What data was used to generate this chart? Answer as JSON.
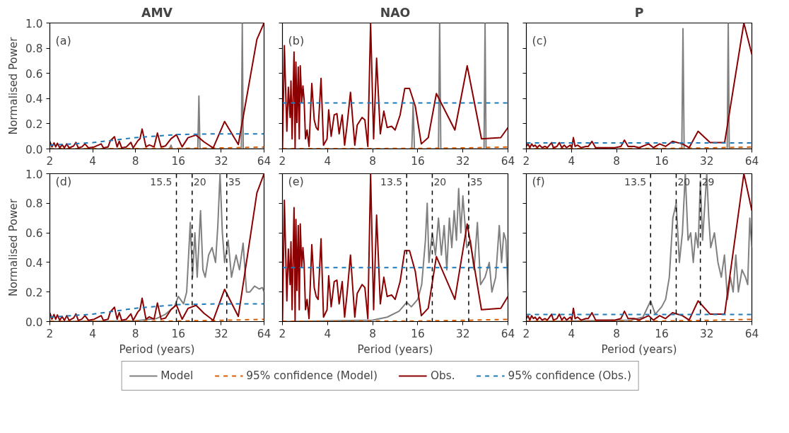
{
  "chart_data": [
    {
      "type": "line",
      "title": "AMV",
      "ylabel": "Normalised Power",
      "annotations": [
        "(a)"
      ],
      "xlim": [
        2,
        64
      ],
      "xticks": [
        2,
        4,
        8,
        16,
        32,
        64
      ],
      "ylim": [
        0,
        1
      ],
      "yticks": [
        {
          "value": 0,
          "label": "0.0"
        },
        {
          "value": 0.2,
          "label": "0.2"
        },
        {
          "value": 0.4,
          "label": "0.4"
        },
        {
          "value": 0.6,
          "label": "0.6"
        },
        {
          "value": 0.8,
          "label": "0.8"
        },
        {
          "value": 1,
          "label": "1.0"
        }
      ],
      "log": "x",
      "series": [
        {
          "color": "#808080",
          "line_style": "solid",
          "x": [
            2,
            13.9,
            14.2,
            14.5,
            21.9,
            22.3,
            22.7,
            44.3,
            45,
            45.7,
            64
          ],
          "values": [
            0,
            0,
            0.03,
            0,
            0,
            0.42,
            0,
            0,
            1.0,
            0,
            0
          ]
        },
        {
          "color": "#d95f02",
          "line_style": "dashed",
          "x": [
            2,
            16,
            32,
            64
          ],
          "values": [
            0.002,
            0.004,
            0.008,
            0.015
          ]
        },
        {
          "color": "#8b0000",
          "line_style": "solid",
          "x": [
            2,
            2.07,
            2.14,
            2.2,
            2.26,
            2.35,
            2.44,
            2.53,
            2.63,
            2.73,
            2.94,
            3.05,
            3.17,
            3.35,
            3.53,
            3.74,
            4.1,
            4.59,
            4.76,
            5.13,
            5.32,
            5.69,
            5.94,
            6.15,
            6.4,
            6.9,
            7.42,
            7.7,
            8.3,
            8.6,
            8.9,
            9.47,
            10,
            10.8,
            11.4,
            12.1,
            13,
            14.2,
            15.5,
            17,
            18.7,
            21.3,
            24.2,
            28.1,
            33.8,
            42.2,
            57,
            64
          ],
          "values": [
            0.06,
            0.016,
            0.048,
            0.016,
            0.045,
            0.008,
            0.035,
            0.008,
            0.04,
            0.008,
            0.024,
            0.052,
            0.008,
            0.016,
            0.04,
            0.008,
            0.016,
            0.04,
            0.008,
            0.016,
            0.065,
            0.097,
            0.016,
            0.061,
            0.008,
            0.016,
            0.052,
            0.008,
            0.065,
            0.081,
            0.158,
            0.016,
            0.032,
            0.016,
            0.126,
            0.016,
            0.024,
            0.081,
            0.113,
            0.016,
            0.089,
            0.11,
            0.056,
            0.008,
            0.218,
            0.035,
            0.87,
            1.0
          ]
        },
        {
          "color": "#1f7ab8",
          "line_style": "dashed",
          "x": [
            2,
            4,
            8,
            16,
            32,
            64
          ],
          "values": [
            0.03,
            0.05,
            0.09,
            0.115,
            0.12,
            0.12
          ]
        }
      ]
    },
    {
      "type": "line",
      "title": "NAO",
      "annotations": [
        "(b)"
      ],
      "xlim": [
        2,
        64
      ],
      "xticks": [
        2,
        4,
        8,
        16,
        32,
        64
      ],
      "ylim": [
        0,
        1
      ],
      "yticks": [
        0,
        0.2,
        0.4,
        0.6,
        0.8,
        1
      ],
      "tick_labels": "x",
      "log": "x",
      "series": [
        {
          "color": "#808080",
          "line_style": "solid",
          "x": [
            2,
            14.6,
            14.9,
            15.2,
            22,
            22.4,
            22.8,
            44.3,
            45,
            45.7,
            64
          ],
          "values": [
            0,
            0,
            0.36,
            0,
            0,
            1.0,
            0,
            0,
            1.0,
            0,
            0
          ]
        },
        {
          "color": "#d95f02",
          "line_style": "dashed",
          "x": [
            2,
            16,
            32,
            64
          ],
          "values": [
            0.002,
            0.004,
            0.008,
            0.015
          ]
        },
        {
          "color": "#8b0000",
          "line_style": "solid",
          "x": [
            2,
            2.06,
            2.14,
            2.19,
            2.25,
            2.28,
            2.32,
            2.39,
            2.43,
            2.46,
            2.5,
            2.55,
            2.59,
            2.63,
            2.69,
            2.74,
            2.79,
            2.85,
            2.92,
            3.01,
            3.14,
            3.26,
            3.36,
            3.46,
            3.62,
            3.76,
            3.97,
            4.07,
            4.23,
            4.43,
            4.62,
            4.78,
            5.01,
            5.2,
            5.4,
            5.69,
            6.08,
            6.31,
            6.8,
            7.1,
            7.43,
            7.75,
            8.12,
            8.5,
            9,
            9.5,
            10,
            10.7,
            11.3,
            12.2,
            13.1,
            14.1,
            15.4,
            16.9,
            18.8,
            21.3,
            28.3,
            34.2,
            42.6,
            57.3,
            64
          ],
          "values": [
            0,
            0.82,
            0.14,
            0.49,
            0.25,
            0.54,
            0.08,
            0.77,
            0,
            0.69,
            0.21,
            0.65,
            0.08,
            0.66,
            0.37,
            0.5,
            0.39,
            0.08,
            0.15,
            0.02,
            0.52,
            0.23,
            0.17,
            0.15,
            0.56,
            0.03,
            0.08,
            0.31,
            0.1,
            0.27,
            0.28,
            0.12,
            0.27,
            0.03,
            0.19,
            0.45,
            0.03,
            0.19,
            0.25,
            0.23,
            0.02,
            1.0,
            0.08,
            0.72,
            0.12,
            0.3,
            0.17,
            0.18,
            0.15,
            0.27,
            0.48,
            0.48,
            0.34,
            0.04,
            0.09,
            0.44,
            0.15,
            0.66,
            0.08,
            0.09,
            0.17
          ]
        },
        {
          "color": "#1f7ab8",
          "line_style": "dashed",
          "x": [
            2,
            64
          ],
          "values": [
            0.365,
            0.365
          ]
        }
      ]
    },
    {
      "type": "line",
      "title": "P",
      "annotations": [
        "(c)"
      ],
      "xlim": [
        2,
        64
      ],
      "xticks": [
        2,
        4,
        8,
        16,
        32,
        64
      ],
      "ylim": [
        0,
        1
      ],
      "yticks": [
        0,
        0.2,
        0.4,
        0.6,
        0.8,
        1
      ],
      "tick_labels": "x",
      "log": "x",
      "series": [
        {
          "color": "#808080",
          "line_style": "solid",
          "x": [
            2,
            21.8,
            22.2,
            22.6,
            43.8,
            44.5,
            45.2,
            64
          ],
          "values": [
            0,
            0,
            0.955,
            0,
            0,
            1.0,
            0,
            0
          ]
        },
        {
          "color": "#d95f02",
          "line_style": "dashed",
          "x": [
            2,
            16,
            32,
            64
          ],
          "values": [
            0.002,
            0.004,
            0.008,
            0.015
          ]
        },
        {
          "color": "#8b0000",
          "line_style": "solid",
          "x": [
            2,
            2.05,
            2.11,
            2.17,
            2.23,
            2.29,
            2.36,
            2.45,
            2.55,
            2.66,
            2.76,
            2.95,
            3.03,
            3.2,
            3.32,
            3.45,
            3.58,
            3.71,
            3.93,
            4.02,
            4.12,
            4.23,
            4.39,
            4.65,
            5.0,
            5.18,
            5.48,
            5.8,
            6.49,
            7.8,
            8.55,
            9.03,
            9.55,
            10.5,
            11.3,
            13.1,
            14.1,
            15.5,
            16.98,
            18.9,
            22,
            24.4,
            28,
            33.7,
            42.1,
            56.6,
            64
          ],
          "values": [
            0.02,
            0.04,
            0.01,
            0.04,
            0.02,
            0.03,
            0.01,
            0.03,
            0.01,
            0.02,
            0.01,
            0.05,
            0.01,
            0.02,
            0.05,
            0.01,
            0.03,
            0.01,
            0.03,
            0.01,
            0.09,
            0.02,
            0.03,
            0.01,
            0.02,
            0.02,
            0.06,
            0.01,
            0.01,
            0.01,
            0.02,
            0.07,
            0.02,
            0.02,
            0.01,
            0.04,
            0.01,
            0.04,
            0.02,
            0.06,
            0.04,
            0.01,
            0.14,
            0.05,
            0.05,
            1.0,
            0.75
          ]
        },
        {
          "color": "#1f7ab8",
          "line_style": "dashed",
          "x": [
            2,
            64
          ],
          "values": [
            0.048,
            0.048
          ]
        }
      ]
    },
    {
      "type": "line",
      "xlabel": "Period (years)",
      "ylabel": "Normalised Power",
      "annotations": [
        "(d)"
      ],
      "xlim": [
        2,
        64
      ],
      "xticks": [
        2,
        4,
        8,
        16,
        32,
        64
      ],
      "ylim": [
        0,
        1
      ],
      "yticks": [
        {
          "value": 0,
          "label": "0.0"
        },
        {
          "value": 0.2,
          "label": "0.2"
        },
        {
          "value": 0.4,
          "label": "0.4"
        },
        {
          "value": 0.6,
          "label": "0.6"
        },
        {
          "value": 0.8,
          "label": "0.8"
        },
        {
          "value": 1,
          "label": "1.0"
        }
      ],
      "log": "x",
      "ref_lines": [
        {
          "axis": "x",
          "value": 15.5,
          "label": "15.5",
          "color": "#000000",
          "line_style": "dashed"
        },
        {
          "axis": "x",
          "value": 20,
          "label": "20",
          "color": "#000000",
          "line_style": "dashed"
        },
        {
          "axis": "x",
          "value": 35,
          "label": "35",
          "color": "#000000",
          "line_style": "dashed"
        }
      ],
      "series": [
        {
          "color": "#808080",
          "line_style": "solid",
          "x": [
            2,
            8,
            11.2,
            13,
            15,
            16,
            17.4,
            18.3,
            19,
            19.4,
            20.1,
            20.9,
            21.7,
            22.9,
            23.8,
            24.7,
            26.1,
            27.6,
            29.2,
            30.3,
            31.4,
            32.6,
            33.8,
            35.8,
            37.8,
            40.7,
            43,
            45.6,
            48.2,
            50.9,
            54.9,
            59.2,
            62.3,
            64
          ],
          "values": [
            0,
            0.005,
            0.02,
            0.05,
            0.1,
            0.17,
            0.12,
            0.2,
            0.5,
            0.67,
            0.3,
            0.6,
            0.3,
            0.75,
            0.35,
            0.3,
            0.45,
            0.5,
            0.4,
            0.65,
            1.0,
            0.6,
            0.4,
            0.55,
            0.3,
            0.45,
            0.35,
            0.53,
            0.2,
            0.2,
            0.24,
            0.22,
            0.23,
            0.2
          ]
        },
        {
          "color": "#d95f02",
          "line_style": "dashed",
          "x": [
            2,
            16,
            32,
            64
          ],
          "values": [
            0.002,
            0.004,
            0.008,
            0.015
          ]
        },
        {
          "color": "#8b0000",
          "line_style": "solid",
          "x": [
            2,
            2.07,
            2.14,
            2.2,
            2.26,
            2.35,
            2.44,
            2.53,
            2.63,
            2.73,
            2.94,
            3.05,
            3.17,
            3.35,
            3.53,
            3.74,
            4.1,
            4.59,
            4.76,
            5.13,
            5.32,
            5.69,
            5.94,
            6.15,
            6.4,
            6.9,
            7.42,
            7.7,
            8.3,
            8.6,
            8.9,
            9.47,
            10,
            10.8,
            11.4,
            12.1,
            13,
            14.2,
            15.5,
            17,
            18.7,
            21.3,
            24.2,
            28.1,
            33.8,
            42.2,
            57,
            64
          ],
          "values": [
            0.06,
            0.016,
            0.048,
            0.016,
            0.045,
            0.008,
            0.035,
            0.008,
            0.04,
            0.008,
            0.024,
            0.052,
            0.008,
            0.016,
            0.04,
            0.008,
            0.016,
            0.04,
            0.008,
            0.016,
            0.065,
            0.097,
            0.016,
            0.061,
            0.008,
            0.016,
            0.052,
            0.008,
            0.065,
            0.081,
            0.158,
            0.016,
            0.032,
            0.016,
            0.126,
            0.016,
            0.024,
            0.081,
            0.113,
            0.016,
            0.089,
            0.11,
            0.056,
            0.008,
            0.218,
            0.035,
            0.87,
            1.0
          ]
        },
        {
          "color": "#1f7ab8",
          "line_style": "dashed",
          "x": [
            2,
            4,
            8,
            16,
            32,
            64
          ],
          "values": [
            0.03,
            0.05,
            0.09,
            0.115,
            0.12,
            0.12
          ]
        }
      ]
    },
    {
      "type": "line",
      "xlabel": "Period (years)",
      "annotations": [
        "(e)"
      ],
      "xlim": [
        2,
        64
      ],
      "xticks": [
        2,
        4,
        8,
        16,
        32,
        64
      ],
      "ylim": [
        0,
        1
      ],
      "yticks": [
        0,
        0.2,
        0.4,
        0.6,
        0.8,
        1
      ],
      "tick_labels": "x",
      "log": "x",
      "ref_lines": [
        {
          "axis": "x",
          "value": 13.5,
          "label": "13.5",
          "color": "#000000",
          "line_style": "dashed"
        },
        {
          "axis": "x",
          "value": 20,
          "label": "20",
          "color": "#000000",
          "line_style": "dashed"
        },
        {
          "axis": "x",
          "value": 35,
          "label": "35",
          "color": "#000000",
          "line_style": "dashed"
        }
      ],
      "series": [
        {
          "color": "#808080",
          "line_style": "solid",
          "x": [
            2,
            8,
            10,
            12,
            13.5,
            14.5,
            16,
            17,
            18,
            18.5,
            19,
            20,
            21,
            22,
            23,
            24,
            25,
            26,
            27,
            28,
            29,
            30,
            31,
            32,
            34,
            36,
            38,
            40,
            42,
            45,
            48,
            50,
            53,
            56,
            58,
            60,
            62,
            64
          ],
          "values": [
            0,
            0.01,
            0.03,
            0.07,
            0.13,
            0.1,
            0.15,
            0.25,
            0.55,
            0.8,
            0.4,
            0.6,
            0.45,
            0.7,
            0.45,
            0.65,
            0.35,
            0.7,
            0.5,
            0.75,
            0.55,
            0.9,
            0.6,
            0.85,
            0.5,
            0.55,
            0.35,
            0.67,
            0.25,
            0.3,
            0.4,
            0.2,
            0.3,
            0.65,
            0.4,
            0.6,
            0.55,
            0.2
          ]
        },
        {
          "color": "#d95f02",
          "line_style": "dashed",
          "x": [
            2,
            16,
            32,
            64
          ],
          "values": [
            0.002,
            0.004,
            0.008,
            0.015
          ]
        },
        {
          "color": "#8b0000",
          "line_style": "solid",
          "x": [
            2,
            2.06,
            2.14,
            2.19,
            2.25,
            2.28,
            2.32,
            2.39,
            2.43,
            2.46,
            2.5,
            2.55,
            2.59,
            2.63,
            2.69,
            2.74,
            2.79,
            2.85,
            2.92,
            3.01,
            3.14,
            3.26,
            3.36,
            3.46,
            3.62,
            3.76,
            3.97,
            4.07,
            4.23,
            4.43,
            4.62,
            4.78,
            5.01,
            5.2,
            5.4,
            5.69,
            6.08,
            6.31,
            6.8,
            7.1,
            7.43,
            7.75,
            8.12,
            8.5,
            9,
            9.5,
            10,
            10.7,
            11.3,
            12.2,
            13.1,
            14.1,
            15.4,
            16.9,
            18.8,
            21.3,
            28.3,
            34.2,
            42.6,
            57.3,
            64
          ],
          "values": [
            0,
            0.82,
            0.14,
            0.49,
            0.25,
            0.54,
            0.08,
            0.77,
            0,
            0.69,
            0.21,
            0.65,
            0.08,
            0.66,
            0.37,
            0.5,
            0.39,
            0.08,
            0.15,
            0.02,
            0.52,
            0.23,
            0.17,
            0.15,
            0.56,
            0.03,
            0.08,
            0.31,
            0.1,
            0.27,
            0.28,
            0.12,
            0.27,
            0.03,
            0.19,
            0.45,
            0.03,
            0.19,
            0.25,
            0.23,
            0.02,
            1.0,
            0.08,
            0.72,
            0.12,
            0.3,
            0.17,
            0.18,
            0.15,
            0.27,
            0.48,
            0.48,
            0.34,
            0.04,
            0.09,
            0.44,
            0.15,
            0.66,
            0.08,
            0.09,
            0.17
          ]
        },
        {
          "color": "#1f7ab8",
          "line_style": "dashed",
          "x": [
            2,
            64
          ],
          "values": [
            0.365,
            0.365
          ]
        }
      ]
    },
    {
      "type": "line",
      "xlabel": "Period (years)",
      "annotations": [
        "(f)"
      ],
      "xlim": [
        2,
        64
      ],
      "xticks": [
        2,
        4,
        8,
        16,
        32,
        64
      ],
      "ylim": [
        0,
        1
      ],
      "yticks": [
        0,
        0.2,
        0.4,
        0.6,
        0.8,
        1
      ],
      "tick_labels": "x",
      "log": "x",
      "legend": "bottom",
      "ref_lines": [
        {
          "axis": "x",
          "value": 13.5,
          "label": "13.5",
          "color": "#000000",
          "line_style": "dashed"
        },
        {
          "axis": "x",
          "value": 20,
          "label": "20",
          "color": "#000000",
          "line_style": "dashed"
        },
        {
          "axis": "x",
          "value": 29,
          "label": "29",
          "color": "#000000",
          "line_style": "dashed"
        }
      ],
      "series": [
        {
          "name": "Model",
          "color": "#808080",
          "line_style": "solid",
          "x": [
            2,
            10,
            12,
            13.5,
            14.5,
            16,
            17,
            18,
            19,
            20,
            21,
            22,
            23,
            24,
            25,
            26,
            27,
            28,
            29,
            30,
            32,
            33,
            34,
            36,
            38,
            40,
            42,
            44,
            46,
            48,
            50,
            52,
            55,
            58,
            60,
            62,
            64
          ],
          "values": [
            0,
            0.01,
            0.03,
            0.14,
            0.05,
            0.1,
            0.15,
            0.3,
            0.7,
            0.8,
            0.4,
            0.6,
            1.0,
            0.55,
            0.6,
            0.4,
            0.6,
            0.5,
            0.95,
            0.55,
            1.0,
            0.7,
            0.5,
            0.6,
            0.4,
            0.3,
            0.45,
            0.15,
            0.3,
            0.2,
            0.45,
            0.2,
            0.35,
            0.3,
            0.25,
            0.7,
            0.5
          ]
        },
        {
          "name": "95% confidence (Model)",
          "color": "#d95f02",
          "line_style": "dashed",
          "x": [
            2,
            16,
            32,
            64
          ],
          "values": [
            0.002,
            0.004,
            0.008,
            0.015
          ]
        },
        {
          "name": "Obs.",
          "color": "#8b0000",
          "line_style": "solid",
          "x": [
            2,
            2.05,
            2.11,
            2.17,
            2.23,
            2.29,
            2.36,
            2.45,
            2.55,
            2.66,
            2.76,
            2.95,
            3.03,
            3.2,
            3.32,
            3.45,
            3.58,
            3.71,
            3.93,
            4.02,
            4.12,
            4.23,
            4.39,
            4.65,
            5.0,
            5.18,
            5.48,
            5.8,
            6.49,
            7.8,
            8.55,
            9.03,
            9.55,
            10.5,
            11.3,
            13.1,
            14.1,
            15.5,
            16.98,
            18.9,
            22,
            24.4,
            28,
            33.7,
            42.1,
            56.6,
            64
          ],
          "values": [
            0.02,
            0.04,
            0.01,
            0.04,
            0.02,
            0.03,
            0.01,
            0.03,
            0.01,
            0.02,
            0.01,
            0.05,
            0.01,
            0.02,
            0.05,
            0.01,
            0.03,
            0.01,
            0.03,
            0.01,
            0.09,
            0.02,
            0.03,
            0.01,
            0.02,
            0.02,
            0.06,
            0.01,
            0.01,
            0.01,
            0.02,
            0.07,
            0.02,
            0.02,
            0.01,
            0.04,
            0.01,
            0.04,
            0.02,
            0.06,
            0.04,
            0.01,
            0.14,
            0.05,
            0.05,
            1.0,
            0.75
          ]
        },
        {
          "name": "95% confidence (Obs.)",
          "color": "#1f7ab8",
          "line_style": "dashed",
          "x": [
            2,
            64
          ],
          "values": [
            0.048,
            0.048
          ]
        }
      ]
    }
  ]
}
